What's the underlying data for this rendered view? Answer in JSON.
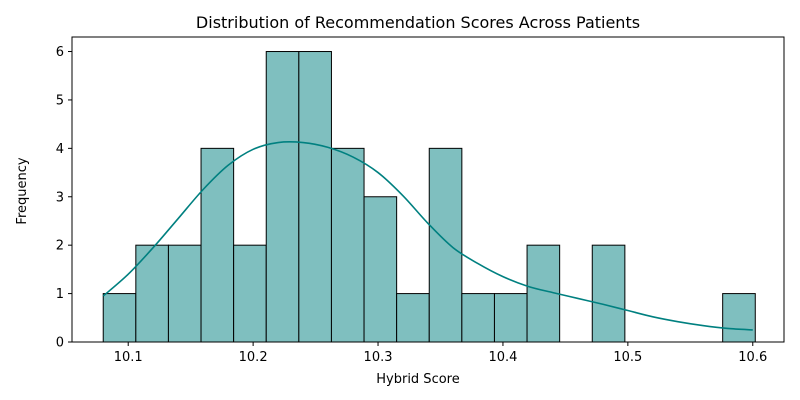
{
  "chart_data": {
    "type": "bar",
    "subtype": "histogram-with-kde",
    "title": "Distribution of Recommendation Scores Across Patients",
    "xlabel": "Hybrid Score",
    "ylabel": "Frequency",
    "xlim": [
      10.055,
      10.625
    ],
    "ylim": [
      0,
      6.3
    ],
    "grid": false,
    "legend": "none",
    "x_ticks": [
      10.1,
      10.2,
      10.3,
      10.4,
      10.5,
      10.6
    ],
    "x_tick_labels": [
      "10.1",
      "10.2",
      "10.3",
      "10.4",
      "10.5",
      "10.6"
    ],
    "y_ticks": [
      0,
      1,
      2,
      3,
      4,
      5,
      6
    ],
    "y_tick_labels": [
      "0",
      "1",
      "2",
      "3",
      "4",
      "5",
      "6"
    ],
    "bin_start": 10.08,
    "bin_width": 0.0261,
    "counts": [
      1,
      2,
      2,
      4,
      2,
      6,
      6,
      4,
      3,
      1,
      4,
      1,
      1,
      2,
      0,
      2,
      0,
      0,
      0,
      1
    ],
    "kde": {
      "x": [
        10.08,
        10.1,
        10.12,
        10.14,
        10.16,
        10.18,
        10.2,
        10.22,
        10.24,
        10.26,
        10.28,
        10.3,
        10.32,
        10.34,
        10.36,
        10.38,
        10.4,
        10.42,
        10.44,
        10.46,
        10.48,
        10.5,
        10.52,
        10.54,
        10.56,
        10.58,
        10.6
      ],
      "y": [
        0.95,
        1.4,
        1.95,
        2.55,
        3.15,
        3.65,
        3.98,
        4.12,
        4.12,
        4.02,
        3.82,
        3.5,
        3.02,
        2.45,
        1.95,
        1.62,
        1.35,
        1.15,
        1.02,
        0.9,
        0.78,
        0.65,
        0.52,
        0.42,
        0.34,
        0.28,
        0.25
      ]
    },
    "colors": {
      "bar_fill": "#7fbfbf",
      "bar_edge": "#000000",
      "kde_line": "#008080"
    }
  }
}
